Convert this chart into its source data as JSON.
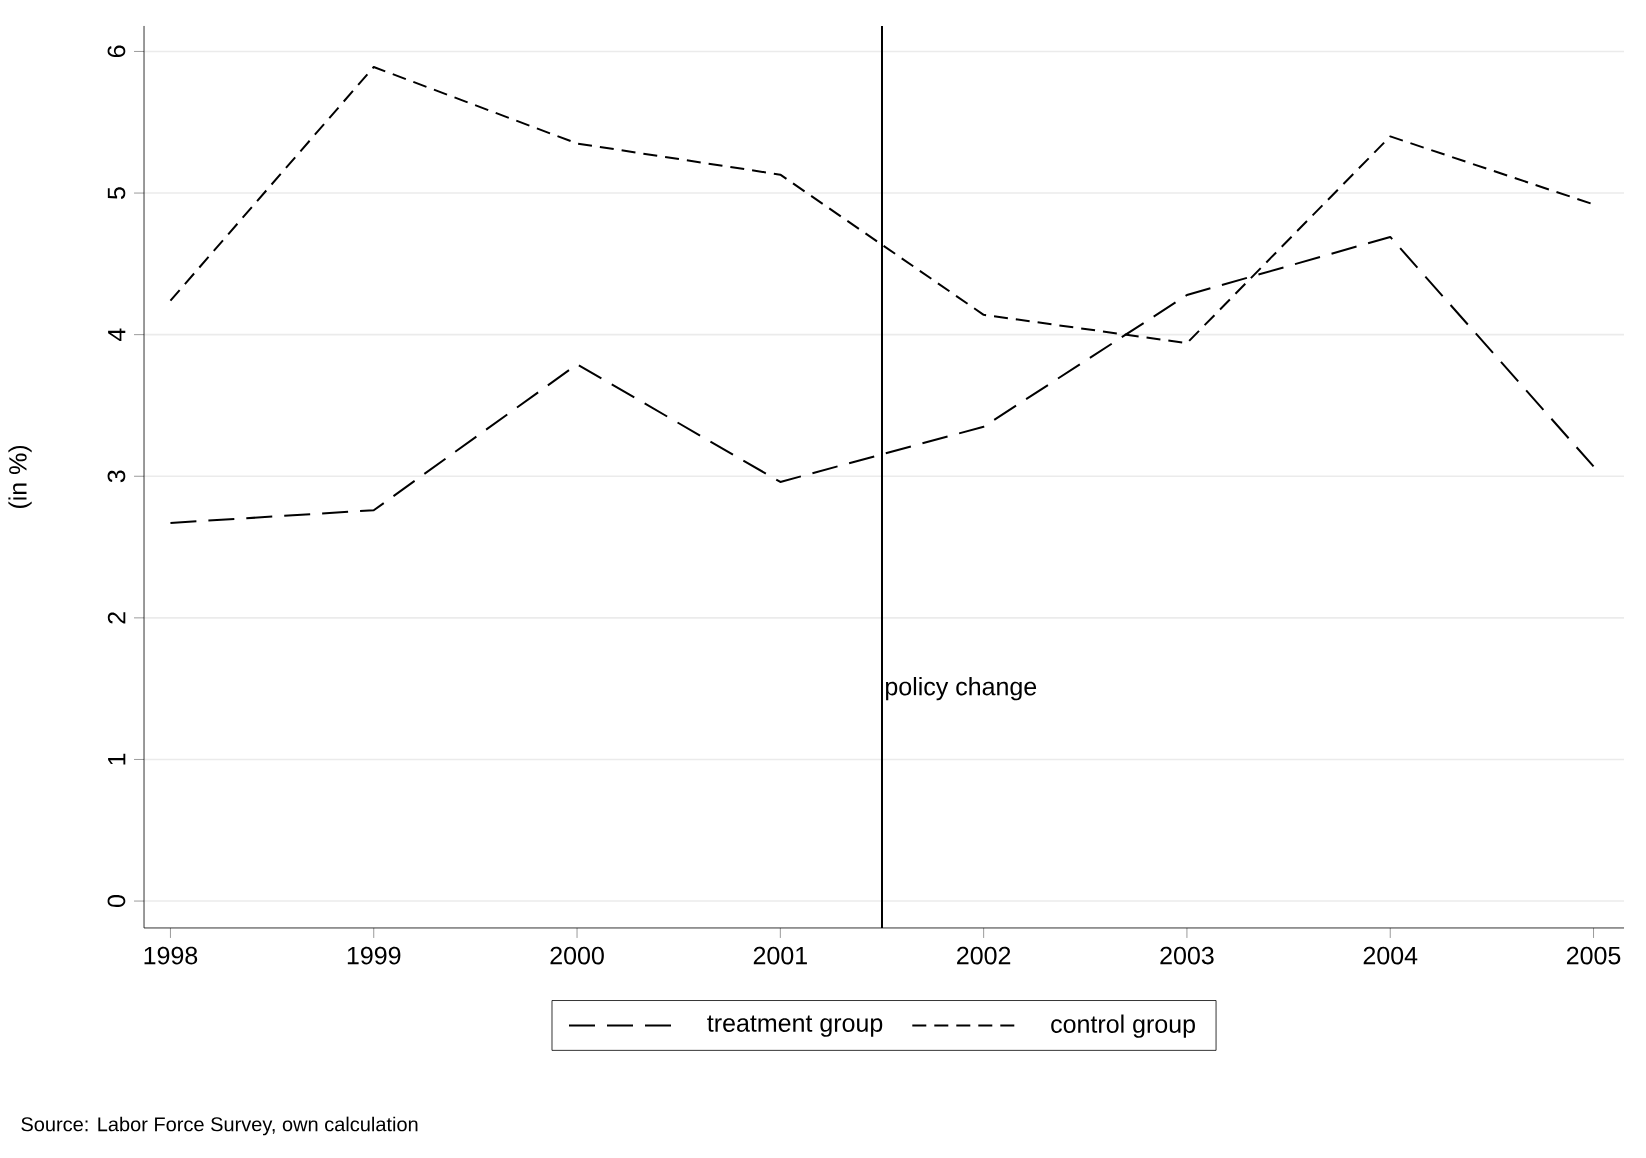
{
  "chart_data": {
    "type": "line",
    "ylabel": "(in %)",
    "x": [
      1998,
      1999,
      2000,
      2001,
      2002,
      2003,
      2004,
      2005
    ],
    "series": [
      {
        "name": "treatment group",
        "color": "#000000",
        "line_style": "dashed",
        "values": [
          2.67,
          2.76,
          3.79,
          2.96,
          3.35,
          4.28,
          4.69,
          3.07
        ]
      },
      {
        "name": "control group",
        "color": "#000000",
        "line_style": "dashed",
        "values": [
          4.24,
          5.89,
          5.35,
          5.13,
          4.14,
          3.94,
          5.4,
          4.92
        ]
      }
    ],
    "xlim": [
      1997.87,
      2005.15
    ],
    "ylim": [
      -0.19,
      6.18
    ],
    "xticks": [
      1998,
      1999,
      2000,
      2001,
      2002,
      2003,
      2004,
      2005
    ],
    "yticks": [
      0,
      1,
      2,
      3,
      4,
      5,
      6
    ],
    "grid": "y",
    "legend": "bottom",
    "marker": "none",
    "ref_lines": [
      {
        "axis": "x",
        "value": 2001.5,
        "label": "policy change",
        "color": "#000000"
      }
    ],
    "annotations": [
      "Source: Labor Force Survey, own calculation"
    ]
  }
}
